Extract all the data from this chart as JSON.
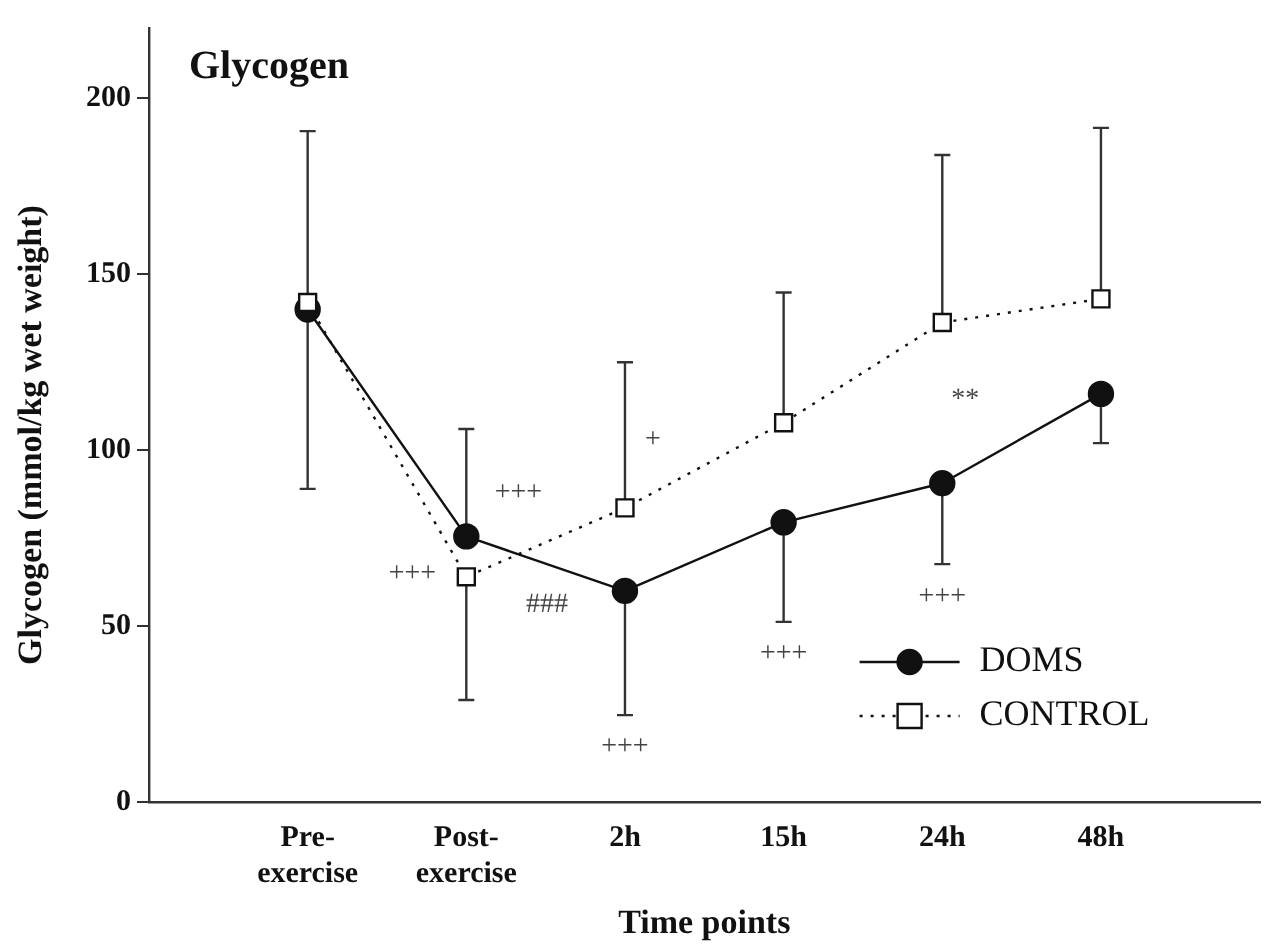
{
  "chart_data": {
    "type": "line",
    "title": "Glycogen",
    "xlabel": "Time points",
    "ylabel": "Glycogen (mmol/kg wet weight)",
    "categories": [
      "Pre-exercise",
      "Post-exercise",
      "2h",
      "15h",
      "24h",
      "48h"
    ],
    "ylim": [
      0,
      220
    ],
    "yticks": [
      0,
      50,
      100,
      150,
      200
    ],
    "grid": false,
    "legend": "bottom right",
    "series": [
      {
        "name": "DOMS",
        "color": "#111111",
        "marker": "circle",
        "line_style": "solid",
        "values": [
          140,
          75.5,
          60,
          79.5,
          90.6,
          116
        ],
        "errors": [
          [
            89,
            140
          ],
          [
            75.5,
            106
          ],
          [
            24.7,
            60
          ],
          [
            51.2,
            79.5
          ],
          [
            67.6,
            90.6
          ],
          [
            102,
            116
          ]
        ]
      },
      {
        "name": "CONTROL",
        "color": "#111111",
        "marker": "square",
        "line_style": "dotted",
        "values": [
          142,
          64,
          83.6,
          107.8,
          136.3,
          143
        ],
        "errors": [
          [
            142,
            190.7
          ],
          [
            29,
            64
          ],
          [
            83.6,
            125
          ],
          [
            107.8,
            144.8
          ],
          [
            136.3,
            183.9
          ],
          [
            143,
            191.6
          ]
        ]
      }
    ],
    "annotations": [
      {
        "text": "+++",
        "x": "Post-exercise",
        "y": 65
      },
      {
        "text": "+++",
        "x": "Post-exercise",
        "y": 88
      },
      {
        "text": "###",
        "x": "2h",
        "y": 56
      },
      {
        "text": "+",
        "x": "2h",
        "y": 103
      },
      {
        "text": "+++",
        "x": "2h",
        "y": 24.7
      },
      {
        "text": "+++",
        "x": "15h",
        "y": 51.2
      },
      {
        "text": "+++",
        "x": "24h",
        "y": 67.6
      },
      "**"
    ]
  }
}
